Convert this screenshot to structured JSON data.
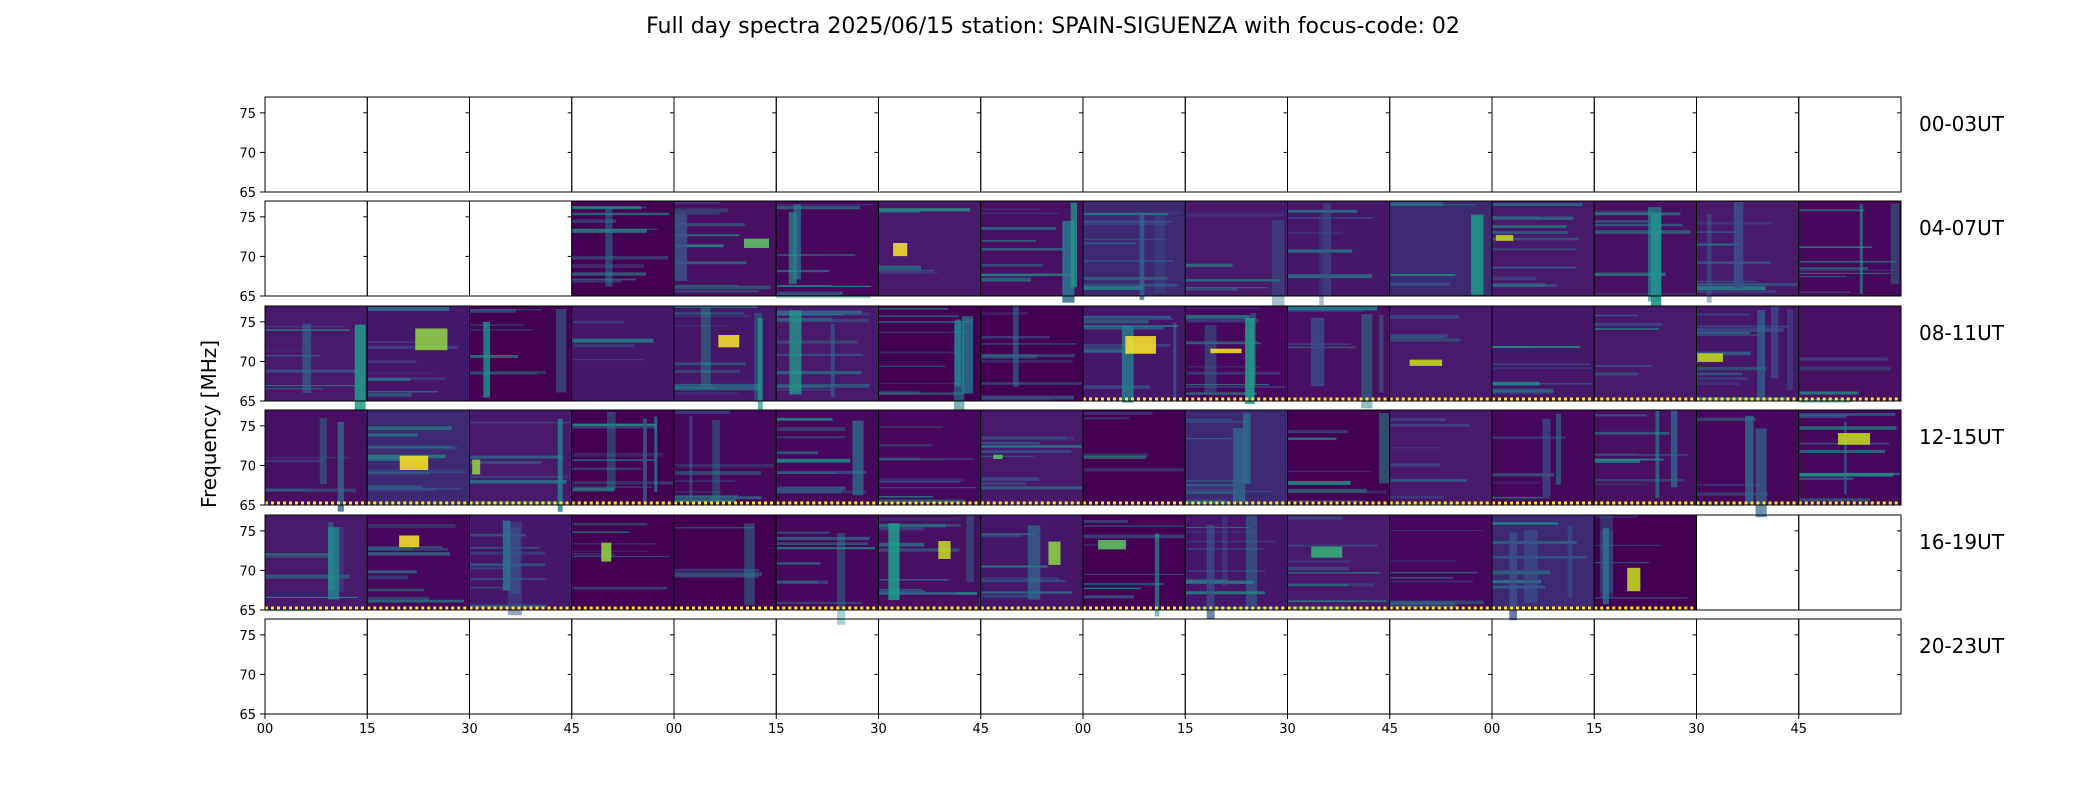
{
  "chart_data": {
    "type": "heatmap",
    "title": "Full day spectra 2025/06/15 station: SPAIN-SIGUENZA with focus-code: 02",
    "ylabel": "Frequency [MHz]",
    "xlabel": "",
    "ylim": [
      65,
      77
    ],
    "y_ticks": [
      "75",
      "70",
      "65"
    ],
    "y_tick_values": [
      75,
      70,
      65
    ],
    "x_tick_labels": [
      "00",
      "15",
      "30",
      "45",
      "00",
      "15",
      "30",
      "45",
      "00",
      "15",
      "30",
      "45",
      "00",
      "15",
      "30",
      "45"
    ],
    "colormap": "viridis",
    "minutes_per_panel": 15,
    "panels_per_row": 16,
    "rows": [
      {
        "label": "00-03UT",
        "data_start": 16,
        "data_end": 16,
        "flagged_bottom": []
      },
      {
        "label": "04-07UT",
        "data_start": 3,
        "data_end": 16,
        "flagged_bottom": []
      },
      {
        "label": "08-11UT",
        "data_start": 0,
        "data_end": 16,
        "flagged_bottom": [
          8,
          9,
          10,
          11,
          12,
          13,
          14,
          15
        ]
      },
      {
        "label": "12-15UT",
        "data_start": 0,
        "data_end": 16,
        "flagged_bottom": [
          0,
          1,
          2,
          3,
          4,
          5,
          6,
          7,
          8,
          9,
          10,
          11,
          12,
          13,
          14,
          15
        ]
      },
      {
        "label": "16-19UT",
        "data_start": 0,
        "data_end": 14,
        "flagged_bottom": [
          0,
          1,
          2,
          3,
          4,
          5,
          6,
          7,
          8,
          9,
          10,
          11,
          12,
          13
        ]
      },
      {
        "label": "20-23UT",
        "data_start": 16,
        "data_end": 16,
        "flagged_bottom": []
      }
    ],
    "grid": false,
    "legend": "none"
  }
}
